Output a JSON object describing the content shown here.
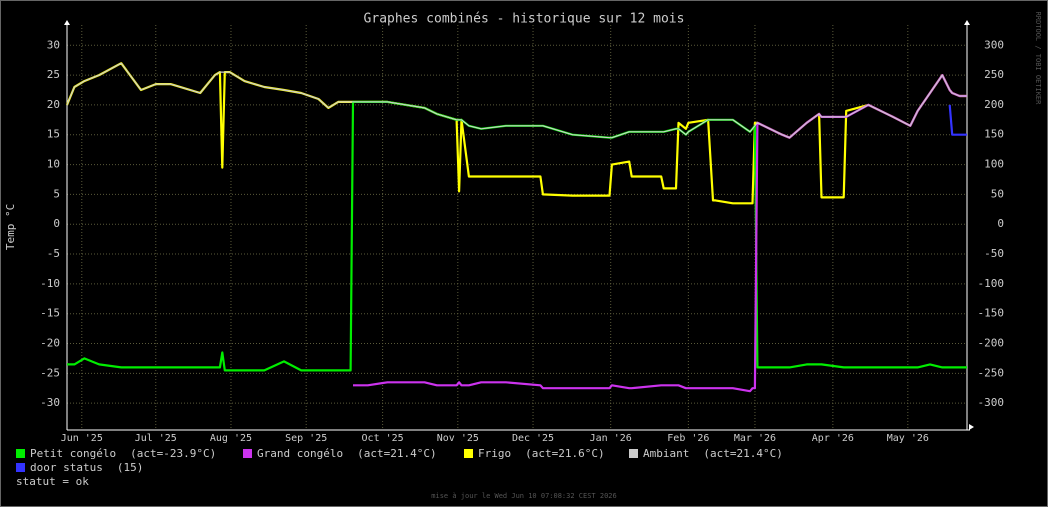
{
  "chart_data": {
    "type": "line",
    "title": "Graphes combinés - historique sur 12 mois",
    "y_label": "Temp °C",
    "side_label": "RRDTOOL / TOBI OETIKER",
    "status": "statut = ok",
    "footer": "mise à jour le Wed Jun 10 07:08:32 CEST 2026",
    "grid": true,
    "xlim": [
      0,
      365
    ],
    "xticks": [
      {
        "value": 6,
        "label": "Jun '25"
      },
      {
        "value": 36,
        "label": "Jul '25"
      },
      {
        "value": 66.5,
        "label": "Aug '25"
      },
      {
        "value": 97,
        "label": "Sep '25"
      },
      {
        "value": 128,
        "label": "Oct '25"
      },
      {
        "value": 158.5,
        "label": "Nov '25"
      },
      {
        "value": 189,
        "label": "Dec '25"
      },
      {
        "value": 220.5,
        "label": "Jan '26"
      },
      {
        "value": 252,
        "label": "Feb '26"
      },
      {
        "value": 279,
        "label": "Mar '26"
      },
      {
        "value": 310.6,
        "label": "Apr '26"
      },
      {
        "value": 341,
        "label": "May '26"
      }
    ],
    "ylim": [
      -34.5,
      33.4
    ],
    "yticks": [
      30,
      25,
      20,
      15,
      10,
      5,
      0,
      -5,
      -10,
      -15,
      -20,
      -25,
      -30
    ],
    "y2lim": [
      -345,
      334
    ],
    "y2ticks": [
      300,
      250,
      200,
      150,
      100,
      50,
      0,
      -50,
      -100,
      -150,
      -200,
      -250,
      -300
    ],
    "x": [
      0,
      3,
      7,
      13,
      22,
      30,
      36,
      42,
      54,
      60,
      62,
      63,
      64,
      66,
      72,
      80,
      88,
      95,
      102,
      106,
      110,
      115,
      116,
      122,
      130,
      145,
      150,
      158,
      159,
      160,
      163,
      168,
      178,
      192,
      193,
      205,
      220,
      221,
      228,
      229,
      241,
      242,
      247,
      248,
      251,
      252,
      260,
      262,
      263,
      270,
      277,
      278,
      279,
      280,
      290,
      293,
      300,
      305,
      306,
      315,
      316,
      325,
      335,
      342,
      345,
      350,
      355,
      358,
      359,
      362,
      365
    ],
    "series": [
      {
        "name": "Frigo",
        "legend_note": "(act=21.6°C)",
        "color": "#ffff00",
        "values": [
          20,
          23,
          24,
          25,
          27,
          22.5,
          23.5,
          23.5,
          22,
          25,
          25.5,
          9.5,
          25.5,
          25.5,
          24,
          23,
          22.5,
          22,
          21,
          19.5,
          20.5,
          20.5,
          20.5,
          20.5,
          20.5,
          19.5,
          18.5,
          17.5,
          5.5,
          17.5,
          8,
          8,
          8,
          8,
          5,
          4.8,
          4.8,
          10,
          10.5,
          8,
          8,
          6,
          6,
          17,
          16,
          17,
          17.5,
          4,
          4,
          3.5,
          3.5,
          3.5,
          17,
          17,
          15,
          14.5,
          17,
          18.5,
          4.5,
          4.5,
          19,
          20,
          18,
          16.5,
          19,
          22,
          25,
          22.5,
          22,
          21.5,
          21.5
        ]
      },
      {
        "name": "Petit congélo",
        "legend_note": "(act=-23.9°C)",
        "color": "#00ee00",
        "values": [
          -23.5,
          -23.5,
          -22.5,
          -23.5,
          -24,
          -24,
          -24,
          -24,
          -24,
          -24,
          -24,
          -21.5,
          -24.5,
          -24.5,
          -24.5,
          -24.5,
          -23,
          -24.5,
          -24.5,
          -24.5,
          -24.5,
          -24.5,
          20.5,
          20.5,
          20.5,
          19.5,
          18.5,
          17.5,
          17.5,
          17.5,
          16.5,
          16,
          16.5,
          16.5,
          16.5,
          15,
          14.5,
          14.5,
          15.5,
          15.5,
          15.5,
          15.5,
          16,
          16,
          15,
          15.5,
          17.5,
          17.5,
          17.5,
          17.5,
          15.5,
          16,
          16.5,
          -24,
          -24,
          -24,
          -23.5,
          -23.5,
          -23.5,
          -24,
          -24,
          -24,
          -24,
          -24,
          -24,
          -23.5,
          -24,
          -24,
          -24,
          -24,
          -24
        ]
      },
      {
        "name": "Grand congélo",
        "legend_note": "(act=21.4°C)",
        "color": "#cc33ee",
        "values": [
          null,
          null,
          null,
          null,
          null,
          null,
          null,
          null,
          null,
          null,
          null,
          null,
          null,
          null,
          null,
          null,
          null,
          null,
          null,
          null,
          null,
          null,
          -27,
          -27,
          -26.5,
          -26.5,
          -27,
          -27,
          -26.5,
          -27,
          -27,
          -26.5,
          -26.5,
          -27,
          -27.5,
          -27.5,
          -27.5,
          -27,
          -27.5,
          -27.5,
          -27,
          -27,
          -27,
          -27,
          -27.5,
          -27.5,
          -27.5,
          -27.5,
          -27.5,
          -27.5,
          -28,
          -27.5,
          -27.5,
          17,
          15,
          14.5,
          17,
          18.5,
          18,
          18,
          18,
          20,
          18,
          16.5,
          19,
          22,
          25,
          22.5,
          22,
          21.5,
          21.5
        ]
      },
      {
        "name": "Ambiant",
        "legend_note": "(act=21.4°C)",
        "color": "#cccccc",
        "values": [
          20,
          23,
          24,
          25,
          27,
          22.5,
          23.5,
          23.5,
          22,
          25,
          25.5,
          25.5,
          25.5,
          25.5,
          24,
          23,
          22.5,
          22,
          21,
          19.5,
          20.5,
          20.5,
          20.5,
          20.5,
          20.5,
          19.5,
          18.5,
          17.5,
          17.5,
          17.5,
          16.5,
          16,
          16.5,
          16.5,
          16.5,
          15,
          14.5,
          14.5,
          15.5,
          15.5,
          15.5,
          15.5,
          16,
          16,
          15,
          15.5,
          17.5,
          17.5,
          17.5,
          17.5,
          15.5,
          16,
          16.5,
          17,
          15,
          14.5,
          17,
          18.5,
          18,
          18,
          18,
          20,
          18,
          16.5,
          19,
          22,
          25,
          22.5,
          22,
          21.5,
          21.5
        ]
      },
      {
        "name": "door status",
        "legend_note": "(15)",
        "color": "#3333ff",
        "values": [
          null,
          null,
          null,
          null,
          null,
          null,
          null,
          null,
          null,
          null,
          null,
          null,
          null,
          null,
          null,
          null,
          null,
          null,
          null,
          null,
          null,
          null,
          null,
          null,
          null,
          null,
          null,
          null,
          null,
          null,
          null,
          null,
          null,
          null,
          null,
          null,
          null,
          null,
          null,
          null,
          null,
          null,
          null,
          null,
          null,
          null,
          null,
          null,
          null,
          null,
          null,
          null,
          null,
          null,
          null,
          null,
          null,
          null,
          null,
          null,
          null,
          null,
          null,
          null,
          null,
          null,
          null,
          20,
          15,
          15,
          15
        ]
      }
    ]
  }
}
